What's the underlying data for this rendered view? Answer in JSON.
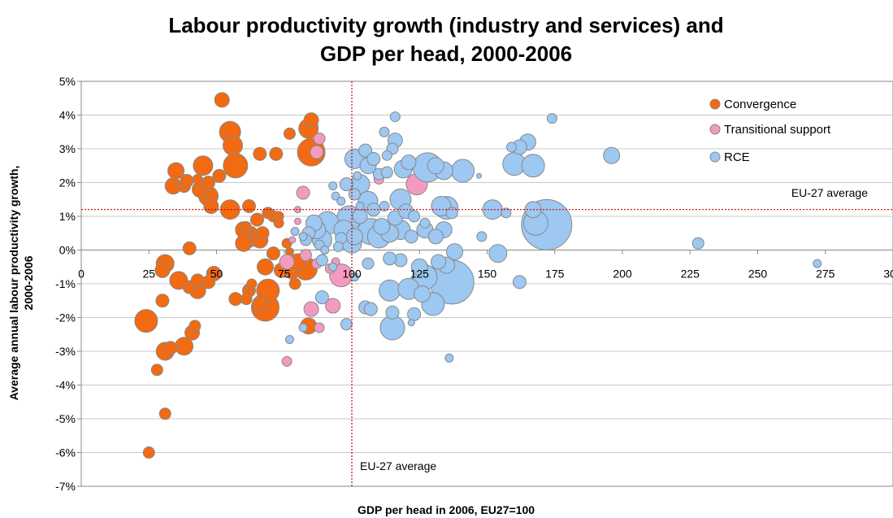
{
  "chart_data": {
    "type": "scatter",
    "title_lines": [
      "Labour productivity growth (industry and services) and",
      "GDP per head, 2000-2006"
    ],
    "xlabel": "GDP per head in 2006, EU27=100",
    "ylabel_lines": [
      "Average annual labour productivity growth,",
      "2000-2006"
    ],
    "xlim": [
      0,
      300
    ],
    "ylim": [
      -7,
      5
    ],
    "x_ticks": [
      0,
      25,
      50,
      75,
      100,
      125,
      150,
      175,
      200,
      225,
      250,
      275,
      300
    ],
    "x_tick_labels": [
      "0",
      "25",
      "50",
      "75",
      "100",
      "125",
      "150",
      "175",
      "200",
      "225",
      "250",
      "275",
      "300"
    ],
    "y_ticks": [
      -7,
      -6,
      -5,
      -4,
      -3,
      -2,
      -1,
      0,
      1,
      2,
      3,
      4,
      5
    ],
    "y_tick_labels": [
      "-7%",
      "-6%",
      "-5%",
      "-4%",
      "-3%",
      "-2%",
      "-1%",
      "0%",
      "1%",
      "2%",
      "3%",
      "4%",
      "5%"
    ],
    "grid": "horizontal",
    "legend_position": "top-right",
    "reference_lines": {
      "eu_avg_x": 100,
      "eu_avg_y": 1.2,
      "color": "#cc0000",
      "label_h": "EU-27 average",
      "label_v": "EU-27 average"
    },
    "series": [
      {
        "name": "Convergence",
        "color": "#f26a11",
        "stroke": "#888888",
        "points": [
          [
            52,
            4.45,
            9
          ],
          [
            85,
            3.85,
            9
          ],
          [
            55,
            3.5,
            13
          ],
          [
            84,
            3.6,
            12
          ],
          [
            77,
            3.45,
            7
          ],
          [
            56,
            3.1,
            12
          ],
          [
            45,
            2.5,
            12
          ],
          [
            35,
            2.35,
            10
          ],
          [
            66,
            2.85,
            8
          ],
          [
            72,
            2.85,
            8
          ],
          [
            85,
            2.9,
            17
          ],
          [
            57,
            2.5,
            15
          ],
          [
            51,
            2.2,
            8
          ],
          [
            34,
            1.9,
            10
          ],
          [
            38,
            1.9,
            8
          ],
          [
            39,
            2.05,
            8
          ],
          [
            43,
            2.1,
            6
          ],
          [
            47,
            2.0,
            8
          ],
          [
            47,
            1.6,
            12
          ],
          [
            44,
            1.8,
            10
          ],
          [
            48,
            1.3,
            9
          ],
          [
            55,
            1.2,
            12
          ],
          [
            62,
            1.3,
            8
          ],
          [
            60,
            0.6,
            10
          ],
          [
            62,
            0.4,
            13
          ],
          [
            66,
            0.3,
            10
          ],
          [
            61,
            0.7,
            6
          ],
          [
            65,
            0.9,
            8
          ],
          [
            69,
            1.1,
            7
          ],
          [
            71,
            1.0,
            7
          ],
          [
            73,
            1.0,
            6
          ],
          [
            73,
            0.8,
            6
          ],
          [
            60,
            0.2,
            10
          ],
          [
            67,
            0.5,
            8
          ],
          [
            40,
            0.05,
            8
          ],
          [
            76,
            0.2,
            6
          ],
          [
            77,
            -0.05,
            5
          ],
          [
            71,
            -0.1,
            8
          ],
          [
            68,
            -0.5,
            10
          ],
          [
            74,
            -0.6,
            9
          ],
          [
            80,
            -0.35,
            10
          ],
          [
            83,
            -0.55,
            14
          ],
          [
            78,
            -0.7,
            7
          ],
          [
            79,
            -1.0,
            7
          ],
          [
            31,
            -0.4,
            11
          ],
          [
            30,
            -0.6,
            9
          ],
          [
            36,
            -0.9,
            11
          ],
          [
            40,
            -1.1,
            8
          ],
          [
            43,
            -0.9,
            8
          ],
          [
            47,
            -0.95,
            8
          ],
          [
            49,
            -0.7,
            9
          ],
          [
            43,
            -1.2,
            10
          ],
          [
            57,
            -1.45,
            8
          ],
          [
            61,
            -1.45,
            7
          ],
          [
            62,
            -1.2,
            8
          ],
          [
            63,
            -1.0,
            6
          ],
          [
            69,
            -1.2,
            14
          ],
          [
            66,
            -1.6,
            9
          ],
          [
            68,
            -1.7,
            17
          ],
          [
            42,
            -2.25,
            7
          ],
          [
            41,
            -2.45,
            9
          ],
          [
            24,
            -2.1,
            14
          ],
          [
            30,
            -1.5,
            8
          ],
          [
            38,
            -2.85,
            11
          ],
          [
            31,
            -3.0,
            11
          ],
          [
            33,
            -2.9,
            8
          ],
          [
            28,
            -3.55,
            7
          ],
          [
            31,
            -4.85,
            7
          ],
          [
            25,
            -6.0,
            7
          ],
          [
            84,
            -2.25,
            10
          ]
        ]
      },
      {
        "name": "Transitional support",
        "color": "#f49ac1",
        "stroke": "#888888",
        "points": [
          [
            88,
            3.3,
            7
          ],
          [
            87,
            2.9,
            8
          ],
          [
            82,
            1.7,
            8
          ],
          [
            80,
            1.2,
            4
          ],
          [
            80,
            0.85,
            4
          ],
          [
            78,
            0.3,
            4
          ],
          [
            76,
            -0.35,
            9
          ],
          [
            83,
            -0.15,
            7
          ],
          [
            92,
            -0.55,
            6
          ],
          [
            94,
            -0.35,
            5
          ],
          [
            96,
            -0.75,
            14
          ],
          [
            85,
            -1.75,
            9
          ],
          [
            93,
            -1.65,
            9
          ],
          [
            88,
            -2.3,
            6
          ],
          [
            76,
            -3.3,
            6
          ],
          [
            124,
            1.95,
            13
          ],
          [
            110,
            2.1,
            6
          ],
          [
            87,
            -0.4,
            6
          ]
        ]
      },
      {
        "name": "RCE",
        "color": "#9cc8f2",
        "stroke": "#888888",
        "points": [
          [
            116,
            3.95,
            6
          ],
          [
            174,
            3.9,
            6
          ],
          [
            112,
            3.5,
            6
          ],
          [
            116,
            3.25,
            9
          ],
          [
            105,
            2.95,
            8
          ],
          [
            113,
            2.8,
            6
          ],
          [
            115,
            3.0,
            7
          ],
          [
            101,
            2.7,
            12
          ],
          [
            108,
            2.7,
            8
          ],
          [
            106,
            2.5,
            10
          ],
          [
            110,
            2.25,
            7
          ],
          [
            113,
            2.3,
            7
          ],
          [
            119,
            2.4,
            11
          ],
          [
            121,
            2.6,
            9
          ],
          [
            128,
            2.45,
            18
          ],
          [
            131,
            2.5,
            10
          ],
          [
            134,
            2.35,
            11
          ],
          [
            141,
            2.35,
            14
          ],
          [
            147,
            2.2,
            3
          ],
          [
            159,
            3.05,
            6
          ],
          [
            162,
            3.05,
            9
          ],
          [
            165,
            3.2,
            10
          ],
          [
            160,
            2.55,
            14
          ],
          [
            167,
            2.5,
            14
          ],
          [
            196,
            2.8,
            10
          ],
          [
            102,
            2.2,
            5
          ],
          [
            103,
            1.95,
            12
          ],
          [
            98,
            1.95,
            8
          ],
          [
            94,
            1.6,
            5
          ],
          [
            96,
            1.45,
            5
          ],
          [
            101,
            1.65,
            7
          ],
          [
            103,
            1.0,
            9
          ],
          [
            106,
            1.45,
            12
          ],
          [
            108,
            1.2,
            8
          ],
          [
            112,
            1.3,
            6
          ],
          [
            116,
            0.95,
            9
          ],
          [
            118,
            1.5,
            13
          ],
          [
            120,
            1.15,
            9
          ],
          [
            123,
            1.0,
            7
          ],
          [
            127,
            0.8,
            6
          ],
          [
            133,
            1.3,
            12
          ],
          [
            135,
            1.25,
            14
          ],
          [
            137,
            1.1,
            7
          ],
          [
            152,
            1.2,
            12
          ],
          [
            157,
            1.1,
            6
          ],
          [
            167,
            1.2,
            10
          ],
          [
            168,
            0.8,
            15
          ],
          [
            172,
            0.75,
            31
          ],
          [
            148,
            0.4,
            6
          ],
          [
            154,
            -0.1,
            11
          ],
          [
            162,
            -0.95,
            8
          ],
          [
            228,
            0.2,
            7
          ],
          [
            272,
            -0.4,
            5
          ],
          [
            99,
            0.95,
            15
          ],
          [
            97,
            0.6,
            12
          ],
          [
            91,
            0.8,
            14
          ],
          [
            87,
            0.6,
            11
          ],
          [
            89,
            0.3,
            12
          ],
          [
            86,
            0.8,
            10
          ],
          [
            100,
            0.2,
            12
          ],
          [
            101,
            0.4,
            10
          ],
          [
            107,
            0.55,
            16
          ],
          [
            110,
            0.4,
            14
          ],
          [
            111,
            0.7,
            10
          ],
          [
            114,
            0.5,
            11
          ],
          [
            118,
            0.6,
            12
          ],
          [
            122,
            0.4,
            8
          ],
          [
            127,
            0.6,
            10
          ],
          [
            131,
            0.4,
            9
          ],
          [
            134,
            0.6,
            10
          ],
          [
            138,
            -0.05,
            10
          ],
          [
            125,
            -0.5,
            10
          ],
          [
            132,
            -0.35,
            9
          ],
          [
            135,
            -0.45,
            10
          ],
          [
            127,
            -0.8,
            15
          ],
          [
            137,
            -0.95,
            27
          ],
          [
            118,
            -0.3,
            8
          ],
          [
            114,
            -0.25,
            8
          ],
          [
            106,
            -0.4,
            7
          ],
          [
            105,
            -1.7,
            8
          ],
          [
            107,
            -1.75,
            8
          ],
          [
            114,
            -1.2,
            13
          ],
          [
            121,
            -1.15,
            13
          ],
          [
            126,
            -1.3,
            10
          ],
          [
            123,
            -1.9,
            8
          ],
          [
            115,
            -1.85,
            8
          ],
          [
            115,
            -2.3,
            15
          ],
          [
            130,
            -1.6,
            14
          ],
          [
            122,
            -2.15,
            4
          ],
          [
            98,
            -2.2,
            7
          ],
          [
            82,
            -2.3,
            5
          ],
          [
            77,
            -2.65,
            5
          ],
          [
            136,
            -3.2,
            5
          ],
          [
            89,
            -1.4,
            8
          ],
          [
            89,
            -0.3,
            7
          ],
          [
            90,
            0.0,
            5
          ],
          [
            93,
            -0.5,
            5
          ],
          [
            95,
            0.1,
            6
          ],
          [
            96,
            0.35,
            7
          ],
          [
            88,
            0.15,
            6
          ],
          [
            83,
            0.3,
            7
          ],
          [
            84,
            0.5,
            8
          ],
          [
            82,
            0.4,
            5
          ],
          [
            79,
            0.55,
            5
          ],
          [
            101,
            -0.8,
            5
          ],
          [
            103,
            1.3,
            5
          ],
          [
            93,
            1.9,
            5
          ]
        ]
      }
    ]
  }
}
